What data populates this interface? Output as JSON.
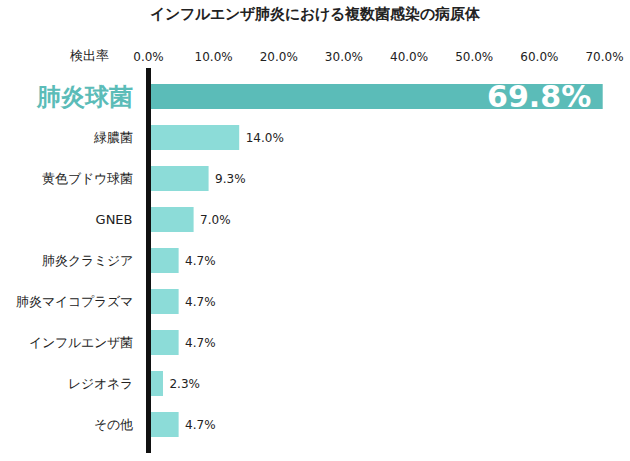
{
  "chart_data": {
    "type": "bar",
    "orientation": "horizontal",
    "title": "インフルエンザ肺炎における複数菌感染の病原体",
    "x_label": "検出率",
    "categories": [
      "肺炎球菌",
      "緑膿菌",
      "黄色ブドウ球菌",
      "GNEB",
      "肺炎クラミジア",
      "肺炎マイコプラズマ",
      "インフルエンザ菌",
      "レジオネラ",
      "その他"
    ],
    "values": [
      69.8,
      14.0,
      9.3,
      7.0,
      4.7,
      4.7,
      4.7,
      2.3,
      4.7
    ],
    "value_labels": [
      "69.8%",
      "14.0%",
      "9.3%",
      "7.0%",
      "4.7%",
      "4.7%",
      "4.7%",
      "2.3%",
      "4.7%"
    ],
    "colors": [
      "#5bbcb8",
      "#8cdcd8",
      "#8cdcd8",
      "#8cdcd8",
      "#8cdcd8",
      "#8cdcd8",
      "#8cdcd8",
      "#8cdcd8",
      "#8cdcd8"
    ],
    "xlim": [
      0,
      70
    ],
    "xticks": [
      {
        "value": 0,
        "label": "0.0%"
      },
      {
        "value": 10,
        "label": "10.0%"
      },
      {
        "value": 20,
        "label": "20.0%"
      },
      {
        "value": 30,
        "label": "30.0%"
      },
      {
        "value": 40,
        "label": "40.0%"
      },
      {
        "value": 50,
        "label": "50.0%"
      },
      {
        "value": 60,
        "label": "60.0%"
      },
      {
        "value": 70,
        "label": "70.0%"
      }
    ],
    "data_labels": true,
    "grid": false
  }
}
